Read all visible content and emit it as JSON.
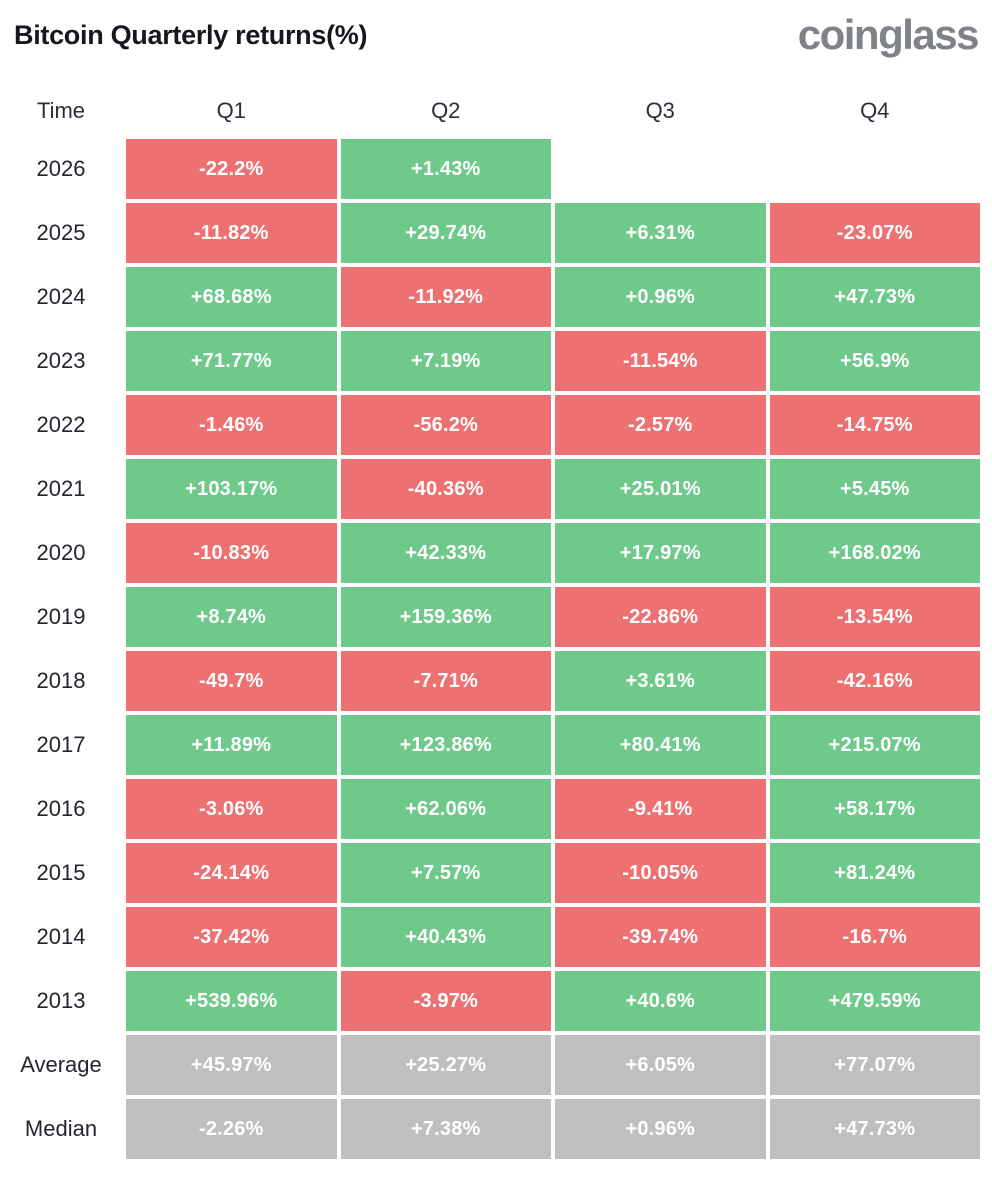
{
  "header": {
    "title": "Bitcoin Quarterly returns(%)",
    "brand": "coinglass"
  },
  "chart_data": {
    "type": "heatmap",
    "title": "Bitcoin Quarterly returns(%)",
    "row_header": "Time",
    "columns": [
      "Q1",
      "Q2",
      "Q3",
      "Q4"
    ],
    "rows": [
      {
        "label": "2026",
        "summary": false,
        "values": [
          "-22.2%",
          "+1.43%",
          null,
          null
        ]
      },
      {
        "label": "2025",
        "summary": false,
        "values": [
          "-11.82%",
          "+29.74%",
          "+6.31%",
          "-23.07%"
        ]
      },
      {
        "label": "2024",
        "summary": false,
        "values": [
          "+68.68%",
          "-11.92%",
          "+0.96%",
          "+47.73%"
        ]
      },
      {
        "label": "2023",
        "summary": false,
        "values": [
          "+71.77%",
          "+7.19%",
          "-11.54%",
          "+56.9%"
        ]
      },
      {
        "label": "2022",
        "summary": false,
        "values": [
          "-1.46%",
          "-56.2%",
          "-2.57%",
          "-14.75%"
        ]
      },
      {
        "label": "2021",
        "summary": false,
        "values": [
          "+103.17%",
          "-40.36%",
          "+25.01%",
          "+5.45%"
        ]
      },
      {
        "label": "2020",
        "summary": false,
        "values": [
          "-10.83%",
          "+42.33%",
          "+17.97%",
          "+168.02%"
        ]
      },
      {
        "label": "2019",
        "summary": false,
        "values": [
          "+8.74%",
          "+159.36%",
          "-22.86%",
          "-13.54%"
        ]
      },
      {
        "label": "2018",
        "summary": false,
        "values": [
          "-49.7%",
          "-7.71%",
          "+3.61%",
          "-42.16%"
        ]
      },
      {
        "label": "2017",
        "summary": false,
        "values": [
          "+11.89%",
          "+123.86%",
          "+80.41%",
          "+215.07%"
        ]
      },
      {
        "label": "2016",
        "summary": false,
        "values": [
          "-3.06%",
          "+62.06%",
          "-9.41%",
          "+58.17%"
        ]
      },
      {
        "label": "2015",
        "summary": false,
        "values": [
          "-24.14%",
          "+7.57%",
          "-10.05%",
          "+81.24%"
        ]
      },
      {
        "label": "2014",
        "summary": false,
        "values": [
          "-37.42%",
          "+40.43%",
          "-39.74%",
          "-16.7%"
        ]
      },
      {
        "label": "2013",
        "summary": false,
        "values": [
          "+539.96%",
          "-3.97%",
          "+40.6%",
          "+479.59%"
        ]
      },
      {
        "label": "Average",
        "summary": true,
        "values": [
          "+45.97%",
          "+25.27%",
          "+6.05%",
          "+77.07%"
        ]
      },
      {
        "label": "Median",
        "summary": true,
        "values": [
          "-2.26%",
          "+7.38%",
          "+0.96%",
          "+47.73%"
        ]
      }
    ],
    "colors": {
      "positive": "#6fc98b",
      "negative": "#ed7171",
      "summary": "#bfbfbf",
      "value_text": "#ffffff",
      "label_text": "#23262e",
      "title_text": "#15171c",
      "brand_text": "#7f8287"
    }
  }
}
